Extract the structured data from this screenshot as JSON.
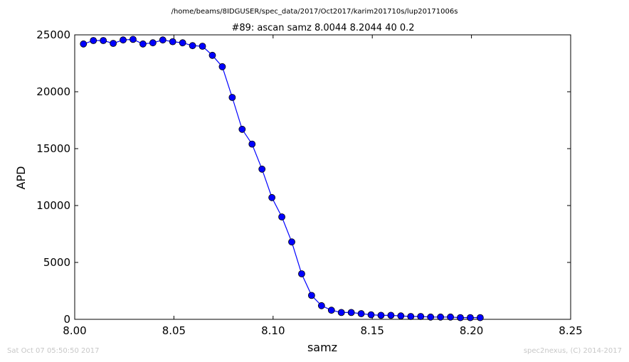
{
  "chart_data": {
    "type": "line",
    "suptitle": "/home/beams/8IDGUSER/spec_data/2017/Oct2017/karim201710s/lup20171006s",
    "title": "#89: ascan  samz 8.0044 8.2044  40 0.2",
    "xlabel": "samz",
    "ylabel": "APD",
    "xlim": [
      8.0,
      8.25
    ],
    "ylim": [
      0,
      25000
    ],
    "xticks": [
      8.0,
      8.05,
      8.1,
      8.15,
      8.2,
      8.25
    ],
    "xtick_labels": [
      "8.00",
      "8.05",
      "8.10",
      "8.15",
      "8.20",
      "8.25"
    ],
    "yticks": [
      0,
      5000,
      10000,
      15000,
      20000,
      25000
    ],
    "ytick_labels": [
      "0",
      "5000",
      "10000",
      "15000",
      "20000",
      "25000"
    ],
    "grid": false,
    "series": [
      {
        "color": "#0000ff",
        "marker": "circle",
        "x": [
          8.0044,
          8.0094,
          8.0144,
          8.0194,
          8.0244,
          8.0294,
          8.0344,
          8.0394,
          8.0444,
          8.0494,
          8.0544,
          8.0594,
          8.0644,
          8.0694,
          8.0744,
          8.0794,
          8.0844,
          8.0894,
          8.0944,
          8.0994,
          8.1044,
          8.1094,
          8.1144,
          8.1194,
          8.1244,
          8.1294,
          8.1344,
          8.1394,
          8.1444,
          8.1494,
          8.1544,
          8.1594,
          8.1644,
          8.1694,
          8.1744,
          8.1794,
          8.1844,
          8.1894,
          8.1944,
          8.1994,
          8.2044
        ],
        "y": [
          24200,
          24500,
          24500,
          24250,
          24550,
          24600,
          24200,
          24300,
          24550,
          24400,
          24300,
          24050,
          24000,
          23200,
          22200,
          19500,
          16700,
          15400,
          13200,
          10700,
          9000,
          6800,
          4000,
          2100,
          1200,
          800,
          600,
          600,
          500,
          400,
          350,
          350,
          300,
          250,
          250,
          200,
          200,
          200,
          150,
          150,
          150
        ]
      }
    ]
  },
  "footer": {
    "timestamp": "Sat Oct 07 05:50:50 2017",
    "credit": "spec2nexus, (C) 2014-2017"
  }
}
